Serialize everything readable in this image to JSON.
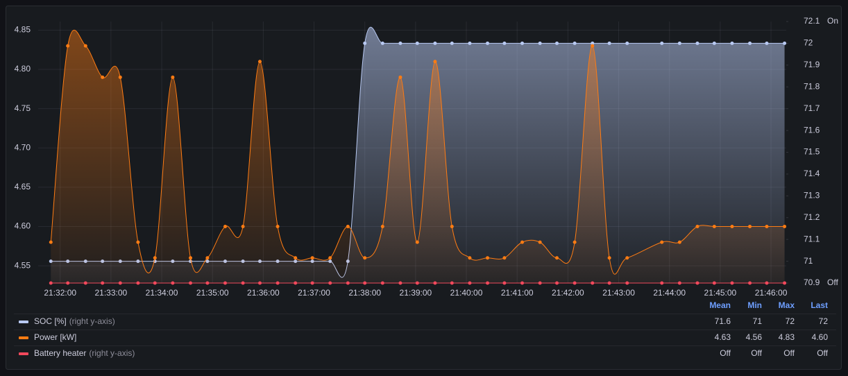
{
  "chart_data": {
    "type": "line",
    "x": [
      "21:31:49",
      "21:32:09",
      "21:32:30",
      "21:32:50",
      "21:33:11",
      "21:33:32",
      "21:33:52",
      "21:34:13",
      "21:34:34",
      "21:34:54",
      "21:35:15",
      "21:35:36",
      "21:35:56",
      "21:36:17",
      "21:36:38",
      "21:36:58",
      "21:37:19",
      "21:37:40",
      "21:38:00",
      "21:38:21",
      "21:38:42",
      "21:39:02",
      "21:39:23",
      "21:39:43",
      "21:40:04",
      "21:40:25",
      "21:40:45",
      "21:41:06",
      "21:41:27",
      "21:41:47",
      "21:42:08",
      "21:42:29",
      "21:42:49",
      "21:43:10",
      "21:43:51",
      "21:44:12",
      "21:44:33",
      "21:44:53",
      "21:45:14",
      "21:45:35",
      "21:45:55",
      "21:46:16"
    ],
    "xlim": [
      "21:31:34",
      "21:46:18"
    ],
    "xticks": [
      "21:32:00",
      "21:33:00",
      "21:34:00",
      "21:35:00",
      "21:36:00",
      "21:37:00",
      "21:38:00",
      "21:39:00",
      "21:40:00",
      "21:41:00",
      "21:42:00",
      "21:43:00",
      "21:44:00",
      "21:45:00",
      "21:46:00"
    ],
    "ylim": [
      4.528,
      4.861
    ],
    "yticks": [
      4.55,
      {
        "value": 4.6,
        "label": "4.60"
      },
      4.65,
      {
        "value": 4.7,
        "label": "4.70"
      },
      4.75,
      {
        "value": 4.8,
        "label": "4.80"
      },
      4.85
    ],
    "y2lim": [
      70.9,
      72.1
    ],
    "y2ticks": [
      70.9,
      71,
      71.1,
      71.2,
      71.3,
      71.4,
      71.5,
      71.6,
      71.7,
      71.8,
      71.9,
      72,
      72.1
    ],
    "y3lim": [
      0,
      1
    ],
    "y3ticks": [
      {
        "value": 0,
        "label": "Off"
      },
      {
        "value": 1,
        "label": "On"
      }
    ],
    "grid": true,
    "legend_columns": [
      "Mean",
      "Min",
      "Max",
      "Last"
    ],
    "series": [
      {
        "name": "SOC [%]",
        "note": "(right y-axis)",
        "axis": "y2",
        "color": "#b8c9f2",
        "fill": true,
        "values": [
          71,
          71,
          71,
          71,
          71,
          71,
          71,
          71,
          71,
          71,
          71,
          71,
          71,
          71,
          71,
          71,
          71,
          71,
          72,
          72,
          72,
          72,
          72,
          72,
          72,
          72,
          72,
          72,
          72,
          72,
          72,
          72,
          72,
          72,
          72,
          72,
          72,
          72,
          72,
          72,
          72,
          72
        ],
        "stats": [
          71.6,
          71,
          72,
          72
        ]
      },
      {
        "name": "Power [kW]",
        "color": "#ff7c13",
        "fill": true,
        "values": [
          4.58,
          4.83,
          4.83,
          4.79,
          4.79,
          4.58,
          4.56,
          4.79,
          4.56,
          4.56,
          4.6,
          4.6,
          4.81,
          4.6,
          4.56,
          4.56,
          4.56,
          4.6,
          4.56,
          4.6,
          4.79,
          4.58,
          4.81,
          4.6,
          4.56,
          4.56,
          4.56,
          4.58,
          4.58,
          4.56,
          4.58,
          4.83,
          4.56,
          4.56,
          4.58,
          4.58,
          4.6,
          4.6,
          4.6,
          4.6,
          4.6,
          4.6
        ],
        "stats": [
          4.63,
          4.56,
          4.83,
          {
            "value": 4.6,
            "label": "4.60"
          }
        ]
      },
      {
        "name": "Battery heater",
        "note": "(right y-axis)",
        "axis": "y3",
        "color": "#f2495c",
        "fill": false,
        "values": [
          0,
          0,
          0,
          0,
          0,
          0,
          0,
          0,
          0,
          0,
          0,
          0,
          0,
          0,
          0,
          0,
          0,
          0,
          0,
          0,
          0,
          0,
          0,
          0,
          0,
          0,
          0,
          0,
          0,
          0,
          0,
          0,
          0,
          0,
          0,
          0,
          0,
          0,
          0,
          0,
          0,
          0
        ],
        "stats": [
          "Off",
          "Off",
          "Off",
          "Off"
        ]
      }
    ]
  }
}
